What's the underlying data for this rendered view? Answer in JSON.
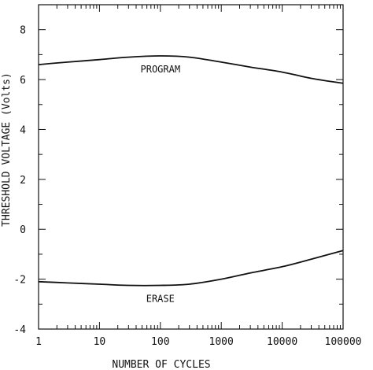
{
  "chart_data": {
    "type": "line",
    "title": "",
    "xlabel": "NUMBER OF CYCLES",
    "ylabel": "THRESHOLD VOLTAGE (Volts)",
    "x_scale": "log",
    "xlim": [
      1,
      100000
    ],
    "ylim": [
      -4,
      9
    ],
    "x_ticks": [
      1,
      10,
      100,
      1000,
      10000,
      100000
    ],
    "x_tick_labels": [
      "1",
      "10",
      "100",
      "1000",
      "10000",
      "100000"
    ],
    "y_ticks": [
      -4,
      -2,
      0,
      2,
      4,
      6,
      8
    ],
    "y_tick_labels": [
      "-4",
      "-2",
      "0",
      "2",
      "4",
      "6",
      "8"
    ],
    "grid": false,
    "series": [
      {
        "name": "PROGRAM",
        "x": [
          1,
          3,
          10,
          30,
          100,
          300,
          1000,
          3000,
          10000,
          30000,
          100000
        ],
        "y": [
          6.6,
          6.7,
          6.8,
          6.9,
          6.95,
          6.9,
          6.7,
          6.5,
          6.3,
          6.05,
          5.85
        ]
      },
      {
        "name": "ERASE",
        "x": [
          1,
          3,
          10,
          30,
          100,
          300,
          1000,
          3000,
          10000,
          30000,
          100000
        ],
        "y": [
          -2.1,
          -2.15,
          -2.2,
          -2.25,
          -2.25,
          -2.2,
          -2.0,
          -1.75,
          -1.5,
          -1.2,
          -0.85
        ]
      }
    ]
  }
}
